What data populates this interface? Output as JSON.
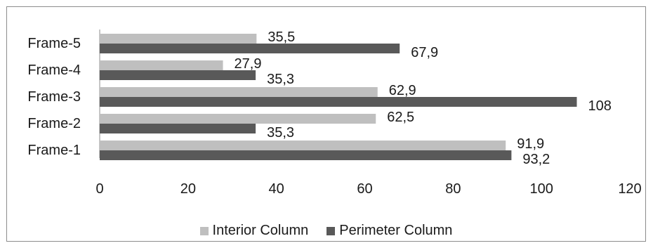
{
  "chart_data": {
    "type": "bar",
    "orientation": "horizontal",
    "categories": [
      "Frame-1",
      "Frame-2",
      "Frame-3",
      "Frame-4",
      "Frame-5"
    ],
    "series": [
      {
        "name": "Interior Column",
        "values": [
          91.9,
          62.5,
          62.9,
          27.9,
          35.5
        ],
        "labels": [
          "91,9",
          "62,5",
          "62,9",
          "27,9",
          "35,5"
        ],
        "color": "#bfbfbf"
      },
      {
        "name": "Perimeter Column",
        "values": [
          93.2,
          35.3,
          108,
          35.3,
          67.9
        ],
        "labels": [
          "93,2",
          "35,3",
          "108",
          "35,3",
          "67,9"
        ],
        "color": "#595959"
      }
    ],
    "xlim": [
      0,
      120
    ],
    "xticks": [
      "0",
      "20",
      "40",
      "60",
      "80",
      "100",
      "120"
    ],
    "grid": false,
    "legend": "bottom"
  }
}
